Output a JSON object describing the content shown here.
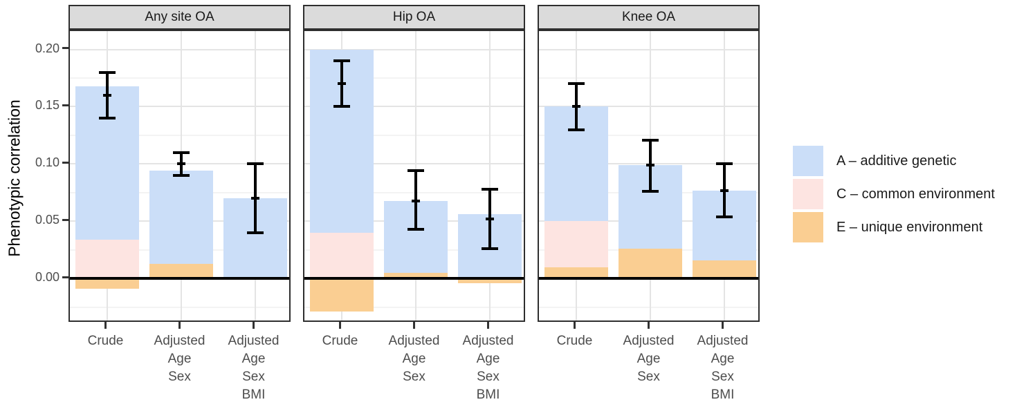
{
  "chart_data": {
    "type": "bar",
    "subtype": "faceted stacked bars with error bars (twin ACE decomposition)",
    "title": "",
    "xlabel": "",
    "ylabel": "Phenotypic correlation",
    "ylim": [
      -0.039,
      0.216
    ],
    "y_major_ticks": [
      0.0,
      0.05,
      0.1,
      0.15,
      0.2
    ],
    "y_tick_labels": [
      "0.00",
      "0.05",
      "0.10",
      "0.15",
      "0.20"
    ],
    "y_minor_gridlines": [
      -0.025,
      0.025,
      0.075,
      0.125,
      0.175
    ],
    "grid": "light gray horizontal major+minor gridlines; vertical gridlines at category centers; solid black line at y=0",
    "legend_position": "right",
    "categories": [
      "Crude",
      "Adjusted Age Sex",
      "Adjusted Age Sex BMI"
    ],
    "category_label_lines": [
      [
        "Crude"
      ],
      [
        "Adjusted",
        "Age",
        "Sex"
      ],
      [
        "Adjusted",
        "Age",
        "Sex",
        "BMI"
      ]
    ],
    "components": {
      "A": {
        "label": "A – additive genetic",
        "color": "#CBDEF8"
      },
      "C": {
        "label": "C – common environment",
        "color": "#FDE4E1"
      },
      "E": {
        "label": "E – unique environment",
        "color": "#FACE92"
      }
    },
    "legend_order": [
      "A",
      "C",
      "E"
    ],
    "facets": [
      {
        "label": "Any site OA",
        "bars": [
          {
            "category": "Crude",
            "segments": [
              {
                "component": "E",
                "from": -0.009,
                "to": 0
              },
              {
                "component": "C",
                "from": 0,
                "to": 0.034
              },
              {
                "component": "A",
                "from": 0.034,
                "to": 0.168
              }
            ],
            "error_bar": {
              "low": 0.14,
              "mid": 0.16,
              "high": 0.18
            }
          },
          {
            "category": "Adjusted Age Sex",
            "segments": [
              {
                "component": "E",
                "from": 0,
                "to": 0.013
              },
              {
                "component": "A",
                "from": 0.013,
                "to": 0.094
              }
            ],
            "error_bar": {
              "low": 0.09,
              "mid": 0.1,
              "high": 0.11
            }
          },
          {
            "category": "Adjusted Age Sex BMI",
            "segments": [
              {
                "component": "A",
                "from": 0,
                "to": 0.07
              }
            ],
            "error_bar": {
              "low": 0.04,
              "mid": 0.07,
              "high": 0.1
            }
          }
        ]
      },
      {
        "label": "Hip OA",
        "bars": [
          {
            "category": "Crude",
            "segments": [
              {
                "component": "E",
                "from": -0.029,
                "to": 0
              },
              {
                "component": "C",
                "from": 0,
                "to": 0.04
              },
              {
                "component": "A",
                "from": 0.04,
                "to": 0.2
              }
            ],
            "error_bar": {
              "low": 0.15,
              "mid": 0.17,
              "high": 0.19
            }
          },
          {
            "category": "Adjusted Age Sex",
            "segments": [
              {
                "component": "E",
                "from": 0,
                "to": 0.005
              },
              {
                "component": "A",
                "from": 0.005,
                "to": 0.068
              }
            ],
            "error_bar": {
              "low": 0.043,
              "mid": 0.068,
              "high": 0.094
            }
          },
          {
            "category": "Adjusted Age Sex BMI",
            "segments": [
              {
                "component": "E",
                "from": -0.004,
                "to": 0
              },
              {
                "component": "A",
                "from": 0,
                "to": 0.056
              }
            ],
            "error_bar": {
              "low": 0.026,
              "mid": 0.052,
              "high": 0.078
            }
          }
        ]
      },
      {
        "label": "Knee OA",
        "bars": [
          {
            "category": "Crude",
            "segments": [
              {
                "component": "E",
                "from": 0,
                "to": 0.01
              },
              {
                "component": "C",
                "from": 0.01,
                "to": 0.05
              },
              {
                "component": "A",
                "from": 0.05,
                "to": 0.15
              }
            ],
            "error_bar": {
              "low": 0.13,
              "mid": 0.15,
              "high": 0.17
            }
          },
          {
            "category": "Adjusted Age Sex",
            "segments": [
              {
                "component": "E",
                "from": 0,
                "to": 0.026
              },
              {
                "component": "A",
                "from": 0.026,
                "to": 0.099
              }
            ],
            "error_bar": {
              "low": 0.076,
              "mid": 0.099,
              "high": 0.121
            }
          },
          {
            "category": "Adjusted Age Sex BMI",
            "segments": [
              {
                "component": "E",
                "from": 0,
                "to": 0.016
              },
              {
                "component": "A",
                "from": 0.016,
                "to": 0.077
              }
            ],
            "error_bar": {
              "low": 0.054,
              "mid": 0.077,
              "high": 0.1
            }
          }
        ]
      }
    ]
  }
}
